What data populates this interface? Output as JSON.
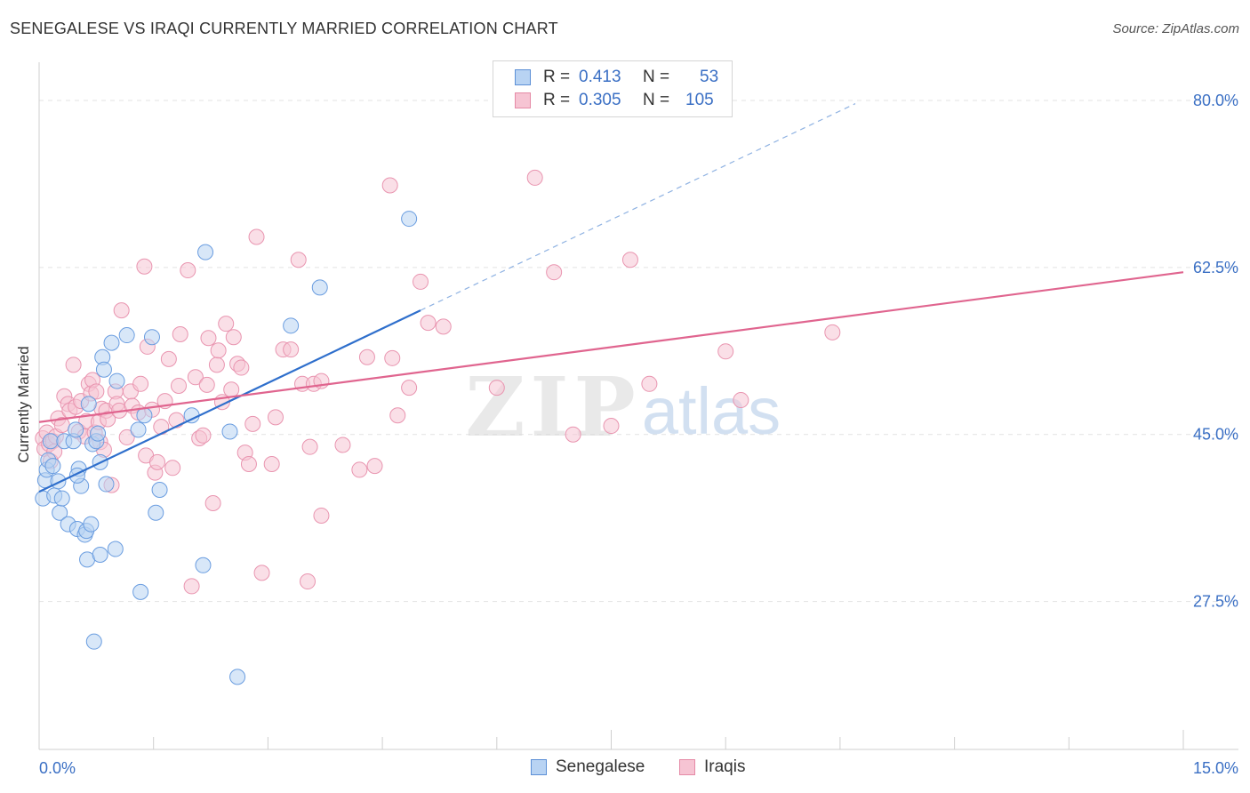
{
  "title": "SENEGALESE VS IRAQI CURRENTLY MARRIED CORRELATION CHART",
  "source": "Source: ZipAtlas.com",
  "watermark": {
    "zip": "ZIP",
    "atlas": "atlas"
  },
  "legend": {
    "rows": [
      {
        "r_label": "R =",
        "r_value": "0.413",
        "n_label": "N =",
        "n_value": "53"
      },
      {
        "r_label": "R =",
        "r_value": "0.305",
        "n_label": "N =",
        "n_value": "105"
      }
    ]
  },
  "bottom_legend": {
    "senegalese": "Senegalese",
    "iraqis": "Iraqis"
  },
  "colors": {
    "blue_fill": "#b8d3f3",
    "blue_stroke": "#6a9de0",
    "blue_line": "#2f6fcc",
    "pink_fill": "#f6c4d3",
    "pink_stroke": "#e995b0",
    "pink_line": "#e0658f",
    "grid": "#e3e3e3",
    "tick_label": "#3a6fc4"
  },
  "chart_data": {
    "type": "scatter",
    "title": "SENEGALESE VS IRAQI CURRENTLY MARRIED CORRELATION CHART",
    "xlabel": "",
    "ylabel": "Currently Married",
    "xlim": [
      0,
      15
    ],
    "ylim": [
      12,
      84
    ],
    "x_tick_labels": [
      "0.0%",
      "15.0%"
    ],
    "y_ticks": [
      27.5,
      45.0,
      62.5,
      80.0
    ],
    "y_tick_labels": [
      "27.5%",
      "45.0%",
      "62.5%",
      "80.0%"
    ],
    "series": [
      {
        "name": "Senegalese",
        "R": 0.413,
        "N": 53,
        "trend": {
          "x0": 0.0,
          "y0": 39.0,
          "x1": 5.0,
          "y1": 58.0,
          "dashed_to_x": 10.7
        },
        "points": [
          [
            0.05,
            38.3
          ],
          [
            0.08,
            40.2
          ],
          [
            0.1,
            41.3
          ],
          [
            0.12,
            42.3
          ],
          [
            0.15,
            44.3
          ],
          [
            0.18,
            41.7
          ],
          [
            0.2,
            38.6
          ],
          [
            0.25,
            40.1
          ],
          [
            0.27,
            36.8
          ],
          [
            0.3,
            38.3
          ],
          [
            0.33,
            44.3
          ],
          [
            0.38,
            35.6
          ],
          [
            0.45,
            44.3
          ],
          [
            0.48,
            45.5
          ],
          [
            0.5,
            35.1
          ],
          [
            0.52,
            41.4
          ],
          [
            0.55,
            39.6
          ],
          [
            0.5,
            40.7
          ],
          [
            0.6,
            34.5
          ],
          [
            0.62,
            34.9
          ],
          [
            0.63,
            31.9
          ],
          [
            0.65,
            48.2
          ],
          [
            0.68,
            35.6
          ],
          [
            0.7,
            44.0
          ],
          [
            0.72,
            23.3
          ],
          [
            0.75,
            44.3
          ],
          [
            0.77,
            45.1
          ],
          [
            0.8,
            42.1
          ],
          [
            0.8,
            32.4
          ],
          [
            0.83,
            53.1
          ],
          [
            0.85,
            51.8
          ],
          [
            0.88,
            39.8
          ],
          [
            0.95,
            54.6
          ],
          [
            1.0,
            33.0
          ],
          [
            1.02,
            50.6
          ],
          [
            1.15,
            55.4
          ],
          [
            1.3,
            45.5
          ],
          [
            1.33,
            28.5
          ],
          [
            1.38,
            47.0
          ],
          [
            1.48,
            55.2
          ],
          [
            1.53,
            36.8
          ],
          [
            1.58,
            39.2
          ],
          [
            2.0,
            47.0
          ],
          [
            2.15,
            31.3
          ],
          [
            2.18,
            64.1
          ],
          [
            2.5,
            45.3
          ],
          [
            2.6,
            19.6
          ],
          [
            3.3,
            56.4
          ],
          [
            3.68,
            60.4
          ],
          [
            4.85,
            67.6
          ]
        ]
      },
      {
        "name": "Iraqis",
        "R": 0.305,
        "N": 105,
        "trend": {
          "x0": 0.0,
          "y0": 46.3,
          "x1": 15.0,
          "y1": 62.0
        },
        "points": [
          [
            0.05,
            44.6
          ],
          [
            0.07,
            43.5
          ],
          [
            0.1,
            45.2
          ],
          [
            0.13,
            44.0
          ],
          [
            0.15,
            42.2
          ],
          [
            0.18,
            44.3
          ],
          [
            0.2,
            43.2
          ],
          [
            0.22,
            44.8
          ],
          [
            0.25,
            46.7
          ],
          [
            0.3,
            46.0
          ],
          [
            0.33,
            49.0
          ],
          [
            0.38,
            48.2
          ],
          [
            0.4,
            47.5
          ],
          [
            0.45,
            52.3
          ],
          [
            0.48,
            47.9
          ],
          [
            0.52,
            45.3
          ],
          [
            0.55,
            48.5
          ],
          [
            0.6,
            44.8
          ],
          [
            0.62,
            46.4
          ],
          [
            0.65,
            50.3
          ],
          [
            0.68,
            49.3
          ],
          [
            0.7,
            50.7
          ],
          [
            0.73,
            45.2
          ],
          [
            0.75,
            49.5
          ],
          [
            0.78,
            46.3
          ],
          [
            0.8,
            44.2
          ],
          [
            0.82,
            47.7
          ],
          [
            0.85,
            43.4
          ],
          [
            0.88,
            47.5
          ],
          [
            0.9,
            46.6
          ],
          [
            0.95,
            39.7
          ],
          [
            1.0,
            49.5
          ],
          [
            1.02,
            48.2
          ],
          [
            1.05,
            47.5
          ],
          [
            1.08,
            58.0
          ],
          [
            1.15,
            44.7
          ],
          [
            1.2,
            49.5
          ],
          [
            1.22,
            48.0
          ],
          [
            1.3,
            47.3
          ],
          [
            1.33,
            50.3
          ],
          [
            1.38,
            62.6
          ],
          [
            1.4,
            42.8
          ],
          [
            1.42,
            54.2
          ],
          [
            1.48,
            47.6
          ],
          [
            1.52,
            41.0
          ],
          [
            1.55,
            42.1
          ],
          [
            1.6,
            45.8
          ],
          [
            1.65,
            48.5
          ],
          [
            1.7,
            52.9
          ],
          [
            1.75,
            41.5
          ],
          [
            1.8,
            46.5
          ],
          [
            1.83,
            50.1
          ],
          [
            1.85,
            55.5
          ],
          [
            1.95,
            62.2
          ],
          [
            2.0,
            29.1
          ],
          [
            2.05,
            51.0
          ],
          [
            2.1,
            44.6
          ],
          [
            2.15,
            44.9
          ],
          [
            2.2,
            50.2
          ],
          [
            2.22,
            55.1
          ],
          [
            2.28,
            37.8
          ],
          [
            2.33,
            52.3
          ],
          [
            2.35,
            53.8
          ],
          [
            2.4,
            48.4
          ],
          [
            2.45,
            56.6
          ],
          [
            2.52,
            49.7
          ],
          [
            2.55,
            55.2
          ],
          [
            2.6,
            52.4
          ],
          [
            2.65,
            52.0
          ],
          [
            2.7,
            43.1
          ],
          [
            2.75,
            41.9
          ],
          [
            2.8,
            46.1
          ],
          [
            2.85,
            65.7
          ],
          [
            2.92,
            30.5
          ],
          [
            3.05,
            41.9
          ],
          [
            3.1,
            46.8
          ],
          [
            3.2,
            53.9
          ],
          [
            3.3,
            53.9
          ],
          [
            3.4,
            63.3
          ],
          [
            3.45,
            50.3
          ],
          [
            3.52,
            29.6
          ],
          [
            3.55,
            43.7
          ],
          [
            3.6,
            50.3
          ],
          [
            3.7,
            36.5
          ],
          [
            3.7,
            50.6
          ],
          [
            3.98,
            43.9
          ],
          [
            4.2,
            41.3
          ],
          [
            4.3,
            53.1
          ],
          [
            4.4,
            41.7
          ],
          [
            4.6,
            71.1
          ],
          [
            4.63,
            53.0
          ],
          [
            4.7,
            47.0
          ],
          [
            4.85,
            49.9
          ],
          [
            5.0,
            61.0
          ],
          [
            5.1,
            56.7
          ],
          [
            5.3,
            56.3
          ],
          [
            6.0,
            49.9
          ],
          [
            6.5,
            71.9
          ],
          [
            6.75,
            62.0
          ],
          [
            7.0,
            45.0
          ],
          [
            7.5,
            45.9
          ],
          [
            7.75,
            63.3
          ],
          [
            8.0,
            50.3
          ],
          [
            9.0,
            53.7
          ],
          [
            9.2,
            48.6
          ],
          [
            10.4,
            55.7
          ]
        ]
      }
    ]
  }
}
